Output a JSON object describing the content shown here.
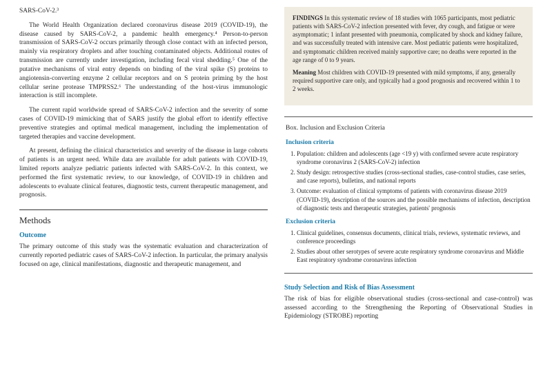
{
  "colors": {
    "accent": "#1a7aa8",
    "box_bg": "#f1ece2",
    "text": "#2a2a2a"
  },
  "left": {
    "p1": "SARS-CoV-2.³",
    "p2": "The World Health Organization declared coronavirus disease 2019 (COVID-19), the disease caused by SARS-CoV-2, a pandemic health emergency.⁴ Person-to-person transmission of SARS-CoV-2 occurs primarily through close contact with an infected person, mainly via respiratory droplets and after touching contaminated objects. Additional routes of transmission are currently under investigation, including fecal viral shedding.⁵ One of the putative mechanisms of viral entry depends on binding of the viral spike (S) proteins to angiotensin-converting enzyme 2 cellular receptors and on S protein priming by the host cellular serine protease TMPRSS2.⁶ The understanding of the host-virus immunologic interaction is still incomplete.",
    "p3": "The current rapid worldwide spread of SARS-CoV-2 infection and the severity of some cases of COVID-19 mimicking that of SARS justify the global effort to identify effective preventive strategies and optimal medical management, including the implementation of targeted therapies and vaccine development.",
    "p4": "At present, defining the clinical characteristics and severity of the disease in large cohorts of patients is an urgent need. While data are available for adult patients with COVID-19, limited reports analyze pediatric patients infected with SARS-CoV-2. In this context, we performed the first systematic review, to our knowledge, of COVID-19 in children and adolescents to evaluate clinical features, diagnostic tests, current therapeutic management, and prognosis.",
    "methods_head": "Methods",
    "outcome_head": "Outcome",
    "outcome_p": "The primary outcome of this study was the systematic evaluation and characterization of currently reported pediatric cases of SARS-CoV-2 infection. In particular, the primary analysis focused on age, clinical manifestations, diagnostic and therapeutic management, and"
  },
  "keypoints": {
    "findings_label": "FINDINGS",
    "findings": "In this systematic review of 18 studies with 1065 participants, most pediatric patients with SARS-CoV-2 infection presented with fever, dry cough, and fatigue or were asymptomatic; 1 infant presented with pneumonia, complicated by shock and kidney failure, and was successfully treated with intensive care. Most pediatric patients were hospitalized, and symptomatic children received mainly supportive care; no deaths were reported in the age range of 0 to 9 years.",
    "meaning_label": "Meaning",
    "meaning": "Most children with COVID-19 presented with mild symptoms, if any, generally required supportive care only, and typically had a good prognosis and recovered within 1 to 2 weeks."
  },
  "criteria": {
    "box_title": "Box. Inclusion and Exclusion Criteria",
    "inc_head": "Inclusion criteria",
    "inc": [
      "Population: children and adolescents (age <19 y) with confirmed severe acute respiratory syndrome coronavirus 2 (SARS-CoV-2) infection",
      "Study design: retrospective studies (cross-sectional studies, case-control studies, case series, and case reports), bulletins, and national reports",
      "Outcome: evaluation of clinical symptoms of patients with coronavirus disease 2019 (COVID-19), description of the sources and the possible mechanisms of infection, description of diagnostic tests and therapeutic strategies, patients' prognosis"
    ],
    "exc_head": "Exclusion criteria",
    "exc": [
      "Clinical guidelines, consensus documents, clinical trials, reviews, systematic reviews, and conference proceedings",
      "Studies about other serotypes of severe acute respiratory syndrome coronavirus and Middle East respiratory syndrome coronavirus infection"
    ]
  },
  "right": {
    "sel_head": "Study Selection and Risk of Bias Assessment",
    "sel_p": "The risk of bias for eligible observational studies (cross-sectional and case-control) was assessed according to the Strengthening the Reporting of Observational Studies in Epidemiology (STROBE) reporting"
  }
}
